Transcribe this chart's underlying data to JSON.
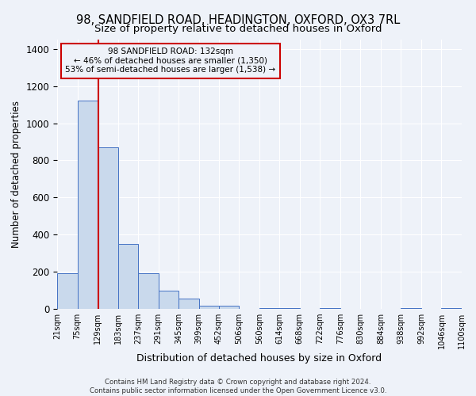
{
  "title1": "98, SANDFIELD ROAD, HEADINGTON, OXFORD, OX3 7RL",
  "title2": "Size of property relative to detached houses in Oxford",
  "xlabel": "Distribution of detached houses by size in Oxford",
  "ylabel": "Number of detached properties",
  "annotation_line1": "98 SANDFIELD ROAD: 132sqm",
  "annotation_line2": "← 46% of detached houses are smaller (1,350)",
  "annotation_line3": "53% of semi-detached houses are larger (1,538) →",
  "footer1": "Contains HM Land Registry data © Crown copyright and database right 2024.",
  "footer2": "Contains public sector information licensed under the Open Government Licence v3.0.",
  "bin_edges": [
    21,
    75,
    129,
    183,
    237,
    291,
    345,
    399,
    452,
    506,
    560,
    614,
    668,
    722,
    776,
    830,
    884,
    938,
    992,
    1046,
    1100
  ],
  "bar_heights": [
    190,
    1120,
    870,
    350,
    190,
    100,
    55,
    15,
    15,
    0,
    5,
    5,
    0,
    5,
    0,
    0,
    0,
    5,
    0,
    5
  ],
  "bar_color": "#c9d9ec",
  "bar_edge_color": "#4472c4",
  "vline_x": 132,
  "vline_color": "#cc0000",
  "annotation_box_color": "#cc0000",
  "ylim": [
    0,
    1450
  ],
  "background_color": "#eef2f9",
  "grid_color": "#ffffff",
  "title_fontsize": 10.5,
  "subtitle_fontsize": 9.5,
  "tick_label_size": 7,
  "ylabel_fontsize": 8.5,
  "xlabel_fontsize": 9
}
